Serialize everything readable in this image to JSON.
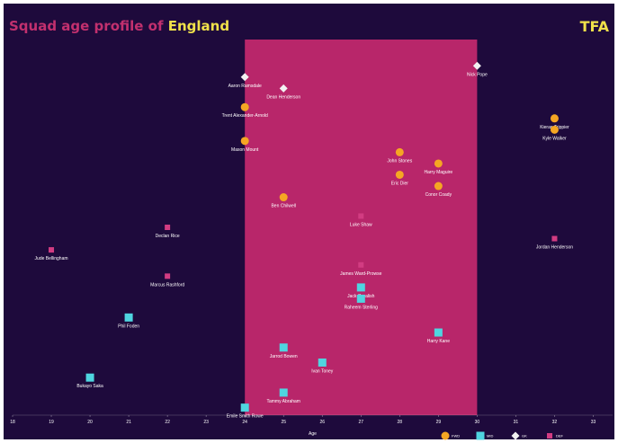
{
  "header": {
    "title_prefix": "Squad age profile of ",
    "team": "England",
    "brand": "TFA"
  },
  "colors": {
    "background": "#1e0a3c",
    "peak_band": "#b8266a",
    "title": "#c2306e",
    "accent": "#f0e14a",
    "gk": "#f2f2f2",
    "def": "#d23c82",
    "mid": "#4fd5e0",
    "fwd": "#f5a623"
  },
  "chart_data": {
    "type": "scatter",
    "xlabel": "Age",
    "xlim": [
      18,
      33.5
    ],
    "ylim": [
      0,
      100
    ],
    "x_ticks": [
      18,
      19,
      20,
      21,
      22,
      23,
      24,
      25,
      26,
      27,
      28,
      29,
      30,
      31,
      32,
      33
    ],
    "peak_range": [
      24,
      30
    ],
    "legend": [
      {
        "key": "fwd",
        "label": "FWD"
      },
      {
        "key": "mid",
        "label": "MID"
      },
      {
        "key": "gk",
        "label": "GK"
      },
      {
        "key": "def",
        "label": "DEF"
      }
    ],
    "points": [
      {
        "name": "Nick Pope",
        "age": 30,
        "y": 93,
        "pos": "gk"
      },
      {
        "name": "Aaron Ramsdale",
        "age": 24,
        "y": 90,
        "pos": "gk"
      },
      {
        "name": "Dean Henderson",
        "age": 25,
        "y": 87,
        "pos": "gk"
      },
      {
        "name": "Trent Alexander-Arnold",
        "age": 24,
        "y": 82,
        "pos": "fwd"
      },
      {
        "name": "Kieran Trippier",
        "age": 32,
        "y": 79,
        "pos": "fwd"
      },
      {
        "name": "Kyle Walker",
        "age": 32,
        "y": 76,
        "pos": "fwd"
      },
      {
        "name": "Mason Mount",
        "age": 24,
        "y": 73,
        "pos": "fwd"
      },
      {
        "name": "John Stones",
        "age": 28,
        "y": 70,
        "pos": "fwd"
      },
      {
        "name": "Harry Maguire",
        "age": 29,
        "y": 67,
        "pos": "fwd"
      },
      {
        "name": "Eric Dier",
        "age": 28,
        "y": 64,
        "pos": "fwd"
      },
      {
        "name": "Conor Coady",
        "age": 29,
        "y": 61,
        "pos": "fwd"
      },
      {
        "name": "Ben Chilwell",
        "age": 25,
        "y": 58,
        "pos": "fwd"
      },
      {
        "name": "Luke Shaw",
        "age": 27,
        "y": 53,
        "pos": "def"
      },
      {
        "name": "Declan Rice",
        "age": 22,
        "y": 50,
        "pos": "def"
      },
      {
        "name": "Jordan Henderson",
        "age": 32,
        "y": 47,
        "pos": "def"
      },
      {
        "name": "Jude Bellingham",
        "age": 19,
        "y": 44,
        "pos": "def"
      },
      {
        "name": "James Ward-Prowse",
        "age": 27,
        "y": 40,
        "pos": "def"
      },
      {
        "name": "Marcus Rashford",
        "age": 22,
        "y": 37,
        "pos": "def"
      },
      {
        "name": "Jack Grealish",
        "age": 27,
        "y": 34,
        "pos": "mid"
      },
      {
        "name": "Raheem Sterling",
        "age": 27,
        "y": 31,
        "pos": "mid"
      },
      {
        "name": "Phil Foden",
        "age": 21,
        "y": 26,
        "pos": "mid"
      },
      {
        "name": "Harry Kane",
        "age": 29,
        "y": 22,
        "pos": "mid"
      },
      {
        "name": "Jarrod Bowen",
        "age": 25,
        "y": 18,
        "pos": "mid"
      },
      {
        "name": "Ivan Toney",
        "age": 26,
        "y": 14,
        "pos": "mid"
      },
      {
        "name": "Bukayo Saka",
        "age": 20,
        "y": 10,
        "pos": "mid"
      },
      {
        "name": "Tammy Abraham",
        "age": 25,
        "y": 6,
        "pos": "mid"
      },
      {
        "name": "Emile Smith Rowe",
        "age": 24,
        "y": 2,
        "pos": "mid"
      }
    ]
  }
}
